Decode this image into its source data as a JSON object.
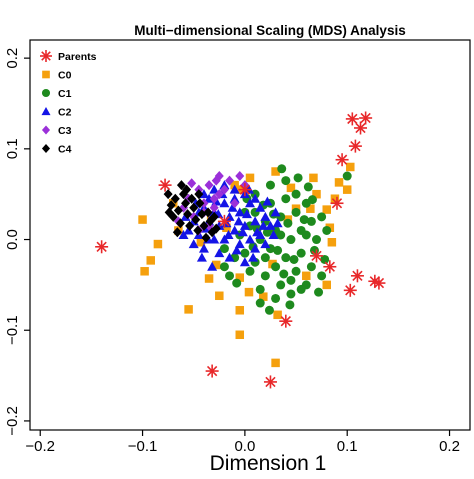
{
  "chart_data": {
    "type": "scatter",
    "title": "Multi−dimensional Scaling (MDS) Analysis",
    "xlabel": "Dimension 1",
    "ylabel": "",
    "xlim": [
      -0.21,
      0.22
    ],
    "ylim": [
      -0.21,
      0.22
    ],
    "x_ticks": [
      -0.2,
      -0.1,
      0.0,
      0.1,
      0.2
    ],
    "x_tick_labels": [
      "−0.2",
      "−0.1",
      "0.0",
      "0.1",
      "0.2"
    ],
    "y_ticks": [
      -0.2,
      -0.1,
      0.0,
      0.1,
      0.2
    ],
    "y_tick_labels": [
      "−0.2",
      "−0.1",
      "0.0",
      "0.1",
      "0.2"
    ],
    "grid": false,
    "legend_position": "top-left",
    "series": [
      {
        "name": "Parents",
        "color": "#e8282a",
        "marker": "asterisk",
        "points": [
          [
            -0.14,
            -0.008
          ],
          [
            -0.078,
            0.06
          ],
          [
            -0.032,
            -0.145
          ],
          [
            -0.02,
            0.02
          ],
          [
            0.0,
            0.055
          ],
          [
            0.025,
            -0.157
          ],
          [
            0.04,
            -0.09
          ],
          [
            0.07,
            -0.018
          ],
          [
            0.083,
            -0.03
          ],
          [
            0.09,
            0.04
          ],
          [
            0.095,
            0.088
          ],
          [
            0.103,
            -0.056
          ],
          [
            0.105,
            0.133
          ],
          [
            0.108,
            0.103
          ],
          [
            0.11,
            -0.04
          ],
          [
            0.113,
            0.123
          ],
          [
            0.118,
            0.134
          ],
          [
            0.127,
            -0.046
          ],
          [
            0.131,
            -0.048
          ]
        ]
      },
      {
        "name": "C0",
        "color": "#f5a00d",
        "marker": "square",
        "points": [
          [
            -0.1,
            0.022
          ],
          [
            -0.098,
            -0.035
          ],
          [
            -0.092,
            -0.023
          ],
          [
            -0.085,
            -0.005
          ],
          [
            -0.055,
            -0.077
          ],
          [
            -0.043,
            -0.003
          ],
          [
            -0.035,
            -0.043
          ],
          [
            -0.033,
            0.026
          ],
          [
            -0.028,
            -0.028
          ],
          [
            -0.025,
            -0.062
          ],
          [
            -0.018,
            0.013
          ],
          [
            -0.01,
            0.06
          ],
          [
            -0.005,
            -0.078
          ],
          [
            -0.003,
            0.055
          ],
          [
            0.005,
            0.068
          ],
          [
            -0.005,
            -0.105
          ],
          [
            -0.005,
            -0.042
          ],
          [
            0.004,
            -0.058
          ],
          [
            0.018,
            -0.063
          ],
          [
            0.027,
            -0.027
          ],
          [
            0.032,
            -0.083
          ],
          [
            0.03,
            -0.136
          ],
          [
            0.03,
            0.075
          ],
          [
            0.042,
            0.022
          ],
          [
            0.045,
            0.057
          ],
          [
            0.05,
            0.034
          ],
          [
            0.064,
            0.034
          ],
          [
            0.067,
            0.068
          ],
          [
            0.07,
            0.05
          ],
          [
            0.08,
            0.033
          ],
          [
            0.083,
            0.013
          ],
          [
            0.085,
            -0.003
          ],
          [
            0.088,
            0.045
          ],
          [
            0.092,
            0.063
          ],
          [
            0.1,
            0.055
          ],
          [
            0.103,
            0.08
          ],
          [
            0.06,
            -0.04
          ],
          [
            0.08,
            -0.05
          ],
          [
            -0.07,
            0.04
          ],
          [
            -0.065,
            0.01
          ]
        ]
      },
      {
        "name": "C1",
        "color": "#1e8a1e",
        "marker": "circle",
        "points": [
          [
            -0.005,
            0.005
          ],
          [
            0.0,
            -0.015
          ],
          [
            0.005,
            0.015
          ],
          [
            0.01,
            -0.025
          ],
          [
            0.01,
            0.03
          ],
          [
            0.015,
            0.0
          ],
          [
            0.02,
            -0.04
          ],
          [
            0.02,
            0.02
          ],
          [
            0.025,
            -0.01
          ],
          [
            0.025,
            0.04
          ],
          [
            0.03,
            -0.03
          ],
          [
            0.03,
            0.01
          ],
          [
            0.035,
            -0.05
          ],
          [
            0.035,
            0.025
          ],
          [
            0.04,
            -0.02
          ],
          [
            0.04,
            0.045
          ],
          [
            0.045,
            0.0
          ],
          [
            0.045,
            -0.06
          ],
          [
            0.05,
            0.03
          ],
          [
            0.05,
            -0.035
          ],
          [
            0.055,
            0.01
          ],
          [
            0.055,
            -0.015
          ],
          [
            0.06,
            0.04
          ],
          [
            0.06,
            -0.05
          ],
          [
            0.065,
            0.02
          ],
          [
            0.065,
            -0.03
          ],
          [
            0.07,
            0.0
          ],
          [
            0.075,
            -0.04
          ],
          [
            0.075,
            0.025
          ],
          [
            0.08,
            0.01
          ],
          [
            0.01,
            0.05
          ],
          [
            0.015,
            -0.055
          ],
          [
            0.005,
            -0.035
          ],
          [
            0.0,
            0.03
          ],
          [
            -0.01,
            -0.02
          ],
          [
            -0.015,
            -0.04
          ],
          [
            -0.02,
            -0.03
          ],
          [
            0.025,
            0.06
          ],
          [
            0.03,
            -0.065
          ],
          [
            0.04,
            0.065
          ],
          [
            0.045,
            -0.045
          ],
          [
            0.02,
            -0.02
          ],
          [
            0.035,
            0.005
          ],
          [
            0.05,
            0.05
          ],
          [
            0.055,
            -0.055
          ],
          [
            0.06,
            0.005
          ],
          [
            0.068,
            -0.012
          ],
          [
            0.012,
            0.012
          ],
          [
            0.028,
            0.028
          ],
          [
            0.038,
            -0.038
          ],
          [
            0.018,
            0.038
          ],
          [
            0.042,
            0.018
          ],
          [
            0.058,
            0.022
          ],
          [
            0.048,
            -0.022
          ],
          [
            0.032,
            -0.012
          ],
          [
            0.022,
            0.008
          ],
          [
            0.008,
            -0.008
          ],
          [
            -0.008,
            -0.048
          ],
          [
            0.015,
            -0.07
          ],
          [
            0.062,
            0.058
          ],
          [
            0.072,
            -0.058
          ],
          [
            0.052,
            0.068
          ],
          [
            0.044,
            -0.072
          ],
          [
            0.036,
            0.078
          ],
          [
            0.024,
            -0.078
          ],
          [
            0.1,
            0.07
          ],
          [
            -0.02,
            -0.01
          ],
          [
            0.002,
            0.045
          ],
          [
            0.078,
            -0.022
          ],
          [
            0.066,
            0.044
          ]
        ]
      },
      {
        "name": "C2",
        "color": "#1414e6",
        "marker": "triangle",
        "points": [
          [
            -0.05,
            0.02
          ],
          [
            -0.045,
            0.005
          ],
          [
            -0.04,
            0.035
          ],
          [
            -0.04,
            -0.01
          ],
          [
            -0.035,
            0.02
          ],
          [
            -0.035,
            0.045
          ],
          [
            -0.03,
            0.0
          ],
          [
            -0.03,
            0.03
          ],
          [
            -0.025,
            -0.015
          ],
          [
            -0.025,
            0.015
          ],
          [
            -0.02,
            0.04
          ],
          [
            -0.02,
            0.0
          ],
          [
            -0.015,
            0.025
          ],
          [
            -0.015,
            -0.02
          ],
          [
            -0.01,
            0.01
          ],
          [
            -0.01,
            0.045
          ],
          [
            -0.005,
            -0.005
          ],
          [
            -0.005,
            0.03
          ],
          [
            0.0,
            0.015
          ],
          [
            0.0,
            -0.025
          ],
          [
            0.005,
            0.04
          ],
          [
            0.005,
            0.0
          ],
          [
            0.01,
            0.02
          ],
          [
            0.01,
            -0.01
          ],
          [
            0.015,
            0.035
          ],
          [
            0.015,
            0.005
          ],
          [
            0.02,
            0.025
          ],
          [
            0.02,
            -0.005
          ],
          [
            0.025,
            0.015
          ],
          [
            0.03,
            0.03
          ],
          [
            -0.045,
            0.03
          ],
          [
            -0.055,
            0.01
          ],
          [
            -0.05,
            -0.005
          ],
          [
            -0.04,
            0.05
          ],
          [
            -0.03,
            0.055
          ],
          [
            -0.02,
            0.06
          ],
          [
            -0.01,
            0.055
          ],
          [
            0.0,
            0.05
          ],
          [
            0.01,
            0.045
          ],
          [
            -0.038,
            0.012
          ],
          [
            -0.028,
            0.042
          ],
          [
            -0.018,
            0.018
          ],
          [
            -0.008,
            -0.012
          ],
          [
            0.002,
            0.028
          ],
          [
            0.012,
            0.008
          ],
          [
            0.022,
            0.042
          ],
          [
            -0.042,
            -0.02
          ],
          [
            -0.032,
            -0.03
          ],
          [
            -0.022,
            0.05
          ],
          [
            -0.012,
            0.035
          ],
          [
            -0.002,
            0.008
          ],
          [
            0.008,
            -0.02
          ],
          [
            0.018,
            0.015
          ],
          [
            -0.048,
            0.04
          ],
          [
            -0.058,
            0.025
          ],
          [
            -0.06,
            0.005
          ],
          [
            0.028,
            0.005
          ],
          [
            0.032,
            0.018
          ],
          [
            -0.026,
            0.028
          ],
          [
            -0.016,
            0.005
          ],
          [
            -0.006,
            0.02
          ],
          [
            0.004,
            0.055
          ],
          [
            -0.036,
            0.0
          ]
        ]
      },
      {
        "name": "C3",
        "color": "#9b30d9",
        "marker": "diamond",
        "points": [
          [
            -0.065,
            0.02
          ],
          [
            -0.06,
            0.035
          ],
          [
            -0.055,
            0.045
          ],
          [
            -0.05,
            0.025
          ],
          [
            -0.045,
            0.055
          ],
          [
            -0.04,
            0.03
          ],
          [
            -0.035,
            0.06
          ],
          [
            -0.03,
            0.045
          ],
          [
            -0.025,
            0.07
          ],
          [
            -0.02,
            0.055
          ],
          [
            -0.015,
            0.065
          ],
          [
            -0.01,
            0.04
          ],
          [
            -0.045,
            0.01
          ],
          [
            -0.04,
            0.04
          ],
          [
            -0.035,
            0.015
          ],
          [
            -0.03,
            0.035
          ],
          [
            -0.025,
            0.05
          ],
          [
            -0.005,
            0.07
          ],
          [
            0.0,
            0.06
          ],
          [
            -0.052,
            0.062
          ],
          [
            -0.028,
            0.065
          ]
        ]
      },
      {
        "name": "C4",
        "color": "#000000",
        "marker": "diamond",
        "points": [
          [
            -0.075,
            0.05
          ],
          [
            -0.072,
            0.038
          ],
          [
            -0.07,
            0.025
          ],
          [
            -0.068,
            0.045
          ],
          [
            -0.065,
            0.032
          ],
          [
            -0.063,
            0.018
          ],
          [
            -0.06,
            0.05
          ],
          [
            -0.058,
            0.04
          ],
          [
            -0.056,
            0.028
          ],
          [
            -0.054,
            0.015
          ],
          [
            -0.052,
            0.045
          ],
          [
            -0.05,
            0.035
          ],
          [
            -0.048,
            0.022
          ],
          [
            -0.046,
            0.01
          ],
          [
            -0.044,
            0.04
          ],
          [
            -0.042,
            0.028
          ],
          [
            -0.04,
            0.015
          ],
          [
            -0.038,
            0.002
          ],
          [
            -0.036,
            0.03
          ],
          [
            -0.034,
            0.02
          ],
          [
            -0.032,
            0.008
          ],
          [
            -0.03,
            0.025
          ],
          [
            -0.028,
            0.012
          ],
          [
            -0.062,
            0.06
          ],
          [
            -0.057,
            0.055
          ],
          [
            -0.066,
            0.008
          ],
          [
            -0.074,
            0.03
          ],
          [
            -0.045,
            0.05
          ]
        ]
      }
    ]
  }
}
